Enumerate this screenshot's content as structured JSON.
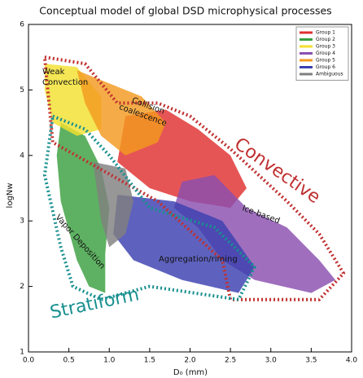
{
  "chart_data": {
    "type": "region",
    "title": "Conceptual model of global DSD microphysical processes",
    "xlabel": "D₀ (mm)",
    "ylabel": "logNw",
    "xlim": [
      0,
      4
    ],
    "ylim": [
      1,
      6
    ],
    "xticks": [
      {
        "value": 0,
        "label": "0.0"
      },
      0.5,
      {
        "value": 1,
        "label": "1.0"
      },
      1.5,
      {
        "value": 2,
        "label": "2.0"
      },
      2.5,
      {
        "value": 3,
        "label": "3.0"
      },
      3.5,
      {
        "value": 4,
        "label": "4.0"
      }
    ],
    "yticks": [
      1,
      2,
      3,
      4,
      5,
      6
    ],
    "legend": "upper right",
    "series": [
      {
        "name": "Group 1",
        "color": "#e03030",
        "x": [
          1.2,
          1.7,
          2.1,
          2.5,
          2.7,
          2.5,
          2.0,
          1.5,
          1.1
        ],
        "y": [
          4.6,
          4.7,
          4.4,
          4.0,
          3.5,
          3.2,
          3.3,
          3.5,
          3.9
        ]
      },
      {
        "name": "Group 2",
        "color": "#3aa040",
        "x": [
          0.4,
          0.7,
          0.9,
          1.0,
          0.95,
          0.95,
          0.75,
          0.6,
          0.4,
          0.35
        ],
        "y": [
          4.5,
          4.3,
          3.8,
          3.2,
          2.5,
          1.9,
          2.0,
          2.4,
          3.3,
          4.0
        ]
      },
      {
        "name": "Group 3",
        "color": "#f2e030",
        "x": [
          0.2,
          0.6,
          0.9,
          0.9,
          0.6,
          0.3,
          0.2
        ],
        "y": [
          5.4,
          5.35,
          4.9,
          4.4,
          4.3,
          4.5,
          5.0
        ]
      },
      {
        "name": "Group 4",
        "color": "#8a4fb0",
        "x": [
          1.9,
          2.3,
          2.7,
          3.2,
          3.6,
          3.8,
          3.5,
          2.8,
          2.4,
          2.1,
          1.8
        ],
        "y": [
          3.6,
          3.7,
          3.2,
          2.9,
          2.4,
          2.1,
          1.9,
          2.1,
          2.4,
          2.9,
          3.2
        ]
      },
      {
        "name": "Group 5",
        "color": "#f39a20",
        "x": [
          0.6,
          1.0,
          1.4,
          1.7,
          1.6,
          1.2,
          0.9,
          0.7
        ],
        "y": [
          5.3,
          5.1,
          4.9,
          4.5,
          4.2,
          4.0,
          4.3,
          4.8
        ]
      },
      {
        "name": "Group 6",
        "color": "#3a40b0",
        "x": [
          1.1,
          1.8,
          2.4,
          2.8,
          2.6,
          1.9,
          1.3,
          1.05
        ],
        "y": [
          3.4,
          3.3,
          3.0,
          2.3,
          1.9,
          2.1,
          2.4,
          2.8
        ]
      },
      {
        "name": "Ambiguous",
        "color": "#808080",
        "x": [
          0.8,
          1.2,
          1.3,
          1.2,
          1.0,
          0.9
        ],
        "y": [
          3.9,
          3.8,
          3.3,
          2.8,
          2.6,
          3.0
        ]
      }
    ],
    "outlines": [
      {
        "name": "Convective",
        "color": "#c03030",
        "x": [
          0.2,
          0.7,
          1.1,
          1.6,
          2.0,
          2.5,
          3.2,
          3.6,
          3.9,
          3.6,
          2.5,
          2.4,
          1.6,
          0.3
        ],
        "y": [
          5.5,
          5.4,
          4.8,
          4.8,
          4.6,
          4.1,
          3.3,
          2.8,
          2.2,
          1.8,
          1.8,
          2.4,
          3.3,
          4.2
        ]
      },
      {
        "name": "Stratiform",
        "color": "#1a9090",
        "x": [
          0.3,
          0.7,
          1.0,
          1.5,
          2.3,
          2.8,
          2.6,
          1.5,
          0.9,
          0.55,
          0.4,
          0.2
        ],
        "y": [
          4.6,
          4.4,
          4.0,
          3.2,
          2.9,
          2.3,
          1.8,
          2.0,
          1.8,
          2.0,
          2.6,
          3.7
        ]
      }
    ],
    "annotations": [
      "Weak Convection",
      "Collision coalescence",
      "Ice-based",
      "Vapor Deposition",
      "Aggregation/riming"
    ]
  }
}
